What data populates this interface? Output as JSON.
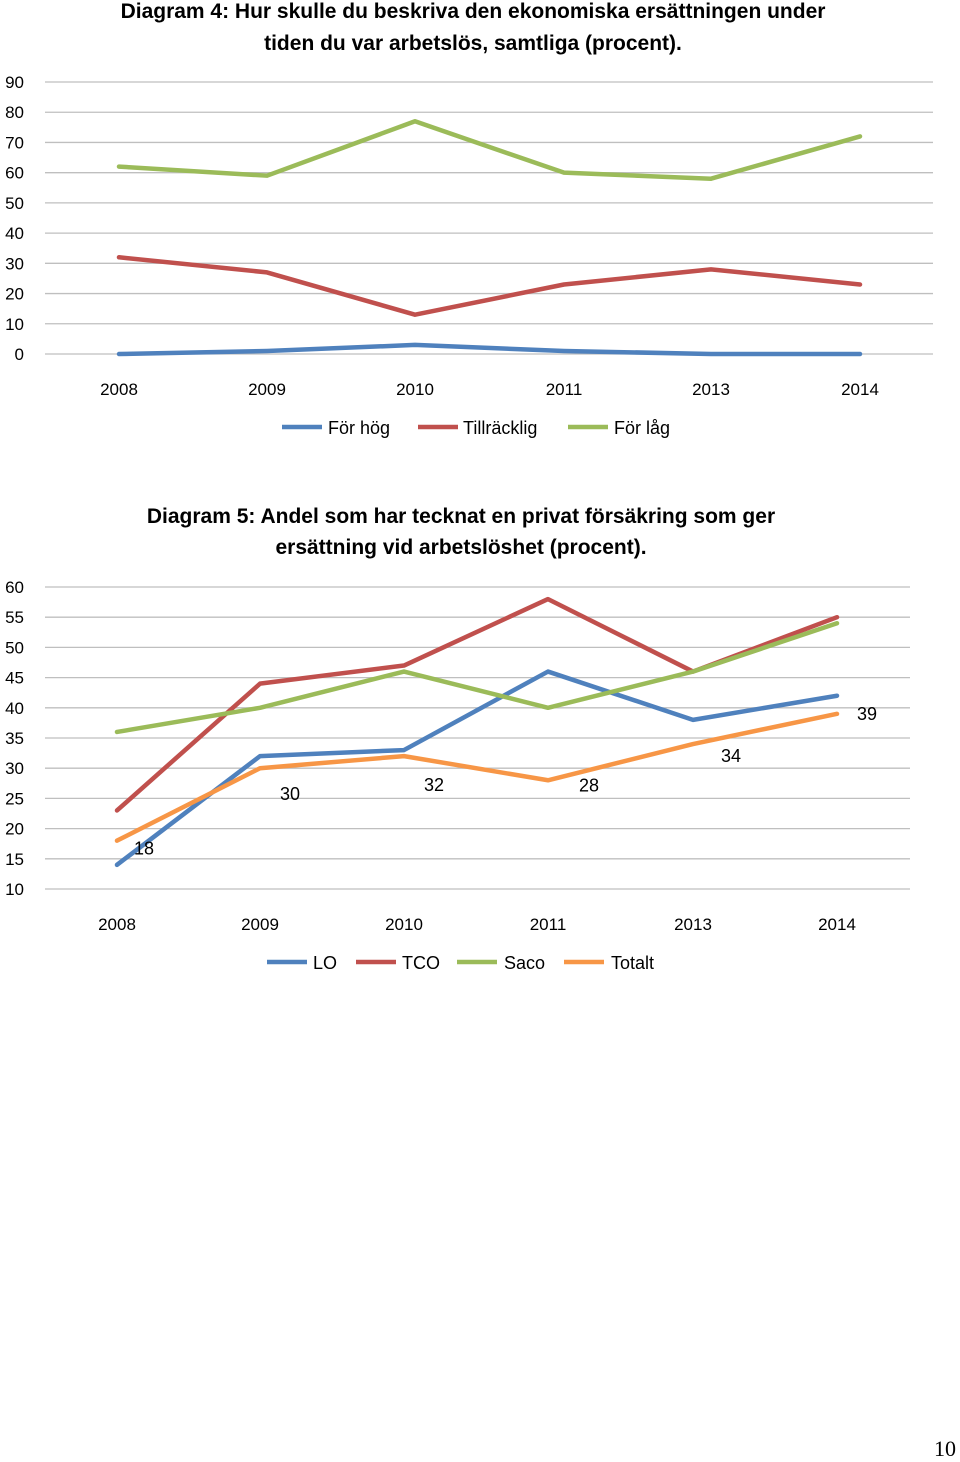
{
  "chart_data": [
    {
      "type": "line",
      "title_lines": [
        "Diagram 4: Hur skulle du beskriva den ekonomiska ersättningen under",
        "tiden du var arbetslös, samtliga (procent)."
      ],
      "categories": [
        "2008",
        "2009",
        "2010",
        "2011",
        "2013",
        "2014"
      ],
      "ylim": [
        0,
        90
      ],
      "yticks": [
        0,
        10,
        20,
        30,
        40,
        50,
        60,
        70,
        80,
        90
      ],
      "grid": true,
      "legend": "bottom",
      "series": [
        {
          "name": "För hög",
          "color": "#4f81bd",
          "values": [
            0,
            1,
            3,
            1,
            0,
            0
          ]
        },
        {
          "name": "Tillräcklig",
          "color": "#c0504d",
          "values": [
            32,
            27,
            13,
            23,
            28,
            23
          ]
        },
        {
          "name": "För låg",
          "color": "#9bbb59",
          "values": [
            62,
            59,
            77,
            60,
            58,
            72
          ]
        }
      ]
    },
    {
      "type": "line",
      "title_lines": [
        "Diagram 5: Andel som har tecknat en privat försäkring som ger",
        "ersättning vid arbetslöshet (procent)."
      ],
      "categories": [
        "2008",
        "2009",
        "2010",
        "2011",
        "2013",
        "2014"
      ],
      "ylim": [
        10,
        60
      ],
      "yticks": [
        10,
        15,
        20,
        25,
        30,
        35,
        40,
        45,
        50,
        55,
        60
      ],
      "grid": true,
      "legend": "bottom",
      "series": [
        {
          "name": "LO",
          "color": "#4f81bd",
          "values": [
            14,
            32,
            33,
            46,
            38,
            42
          ]
        },
        {
          "name": "TCO",
          "color": "#c0504d",
          "values": [
            23,
            44,
            47,
            58,
            46,
            55
          ]
        },
        {
          "name": "Saco",
          "color": "#9bbb59",
          "values": [
            36,
            40,
            46,
            40,
            46,
            54
          ]
        },
        {
          "name": "Totalt",
          "color": "#f79646",
          "values": [
            18,
            30,
            32,
            28,
            34,
            39
          ],
          "data_labels": [
            "18",
            "30",
            "32",
            "28",
            "34",
            "39"
          ]
        }
      ]
    }
  ],
  "page_number": "10"
}
